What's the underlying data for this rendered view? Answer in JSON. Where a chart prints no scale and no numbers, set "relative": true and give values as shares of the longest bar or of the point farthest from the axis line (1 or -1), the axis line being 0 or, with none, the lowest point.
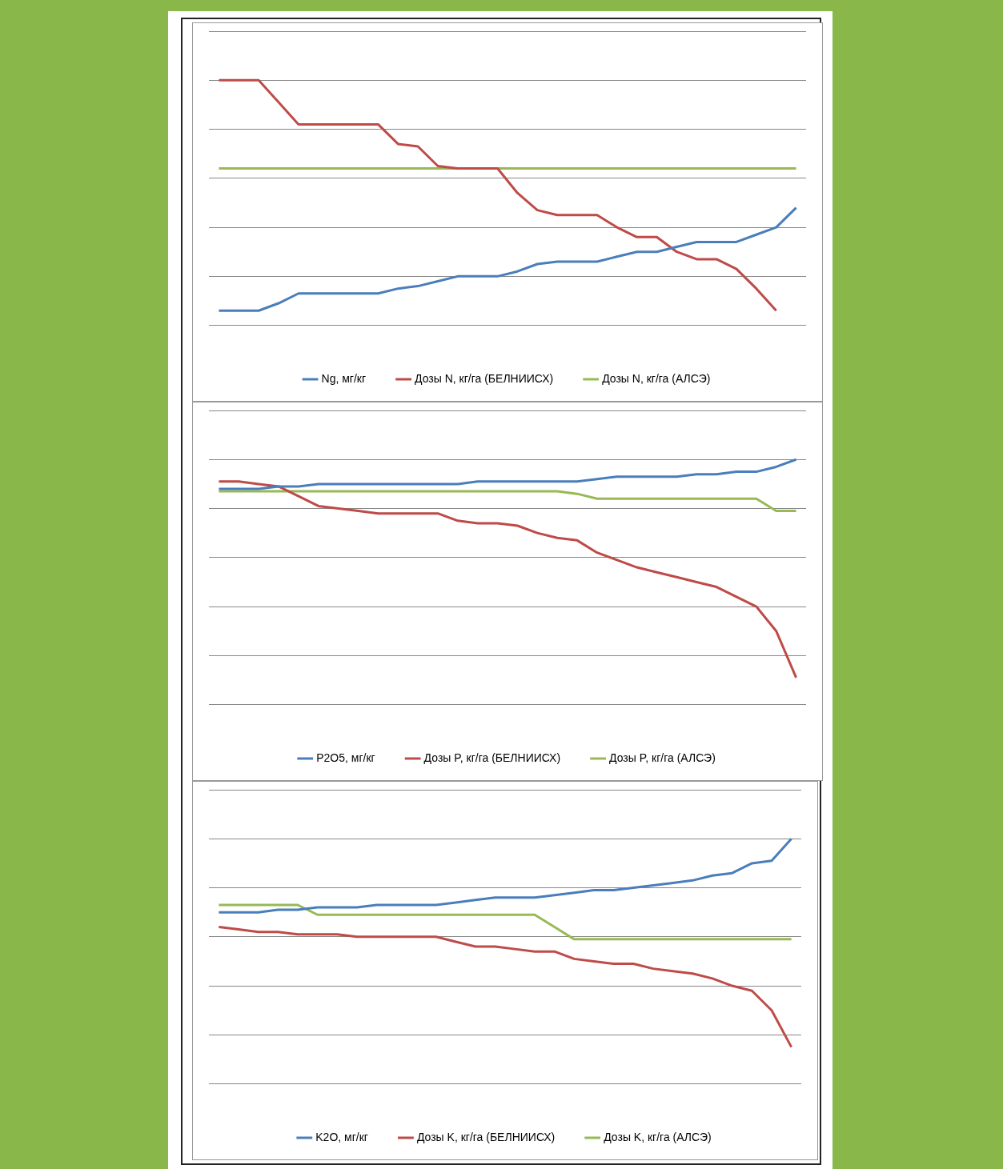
{
  "chart_data": [
    {
      "type": "line",
      "relative": true,
      "categories": [
        null,
        null,
        null,
        null,
        null,
        null,
        null,
        null,
        null,
        null,
        null,
        null,
        null,
        null,
        null,
        null,
        null,
        null,
        null,
        null,
        null,
        null,
        null,
        null,
        null,
        null,
        null,
        null,
        null,
        null
      ],
      "grid": "y",
      "legend": "bottom",
      "marker": "none",
      "series": [
        {
          "name": "Ng, мг/кг",
          "color": "#4a7ebb",
          "values": [
            0.06,
            0.06,
            0.06,
            0.09,
            0.13,
            0.13,
            0.13,
            0.13,
            0.13,
            0.15,
            0.16,
            0.18,
            0.2,
            0.2,
            0.2,
            0.22,
            0.25,
            0.26,
            0.26,
            0.26,
            0.28,
            0.3,
            0.3,
            0.32,
            0.34,
            0.34,
            0.34,
            0.37,
            0.4,
            0.48
          ]
        },
        {
          "name": "Дозы N, кг/га (БЕЛНИИСХ)",
          "color": "#be4b48",
          "values": [
            1,
            1,
            1,
            0.91,
            0.82,
            0.82,
            0.82,
            0.82,
            0.82,
            0.74,
            0.73,
            0.65,
            0.64,
            0.64,
            0.64,
            0.54,
            0.47,
            0.45,
            0.45,
            0.45,
            0.4,
            0.36,
            0.36,
            0.3,
            0.27,
            0.27,
            0.23,
            0.15,
            0.06,
            null
          ]
        },
        {
          "name": "Дозы N, кг/га (АЛСЭ)",
          "color": "#98b954",
          "values": [
            0.64,
            0.64,
            0.64,
            0.64,
            0.64,
            0.64,
            0.64,
            0.64,
            0.64,
            0.64,
            0.64,
            0.64,
            0.64,
            0.64,
            0.64,
            0.64,
            0.64,
            0.64,
            0.64,
            0.64,
            0.64,
            0.64,
            0.64,
            0.64,
            0.64,
            0.64,
            0.64,
            0.64,
            0.64,
            0.64
          ]
        }
      ]
    },
    {
      "type": "line",
      "relative": true,
      "categories": [
        null,
        null,
        null,
        null,
        null,
        null,
        null,
        null,
        null,
        null,
        null,
        null,
        null,
        null,
        null,
        null,
        null,
        null,
        null,
        null,
        null,
        null,
        null,
        null,
        null,
        null,
        null,
        null,
        null,
        null
      ],
      "grid": "y",
      "legend": "bottom",
      "marker": "none",
      "series": [
        {
          "name": "P2O5, мг/кг",
          "color": "#4a7ebb",
          "values": [
            0.88,
            0.88,
            0.88,
            0.89,
            0.89,
            0.9,
            0.9,
            0.9,
            0.9,
            0.9,
            0.9,
            0.9,
            0.9,
            0.91,
            0.91,
            0.91,
            0.91,
            0.91,
            0.91,
            0.92,
            0.93,
            0.93,
            0.93,
            0.93,
            0.94,
            0.94,
            0.95,
            0.95,
            0.97,
            1
          ]
        },
        {
          "name": "Дозы P, кг/га (БЕЛНИИСХ)",
          "color": "#be4b48",
          "values": [
            0.91,
            0.91,
            0.9,
            0.89,
            0.85,
            0.81,
            0.8,
            0.79,
            0.78,
            0.78,
            0.78,
            0.78,
            0.75,
            0.74,
            0.74,
            0.73,
            0.7,
            0.68,
            0.67,
            0.62,
            0.59,
            0.56,
            0.54,
            0.52,
            0.5,
            0.48,
            0.44,
            0.4,
            0.3,
            0.11
          ]
        },
        {
          "name": "Дозы P, кг/га (АЛСЭ)",
          "color": "#98b954",
          "values": [
            0.87,
            0.87,
            0.87,
            0.87,
            0.87,
            0.87,
            0.87,
            0.87,
            0.87,
            0.87,
            0.87,
            0.87,
            0.87,
            0.87,
            0.87,
            0.87,
            0.87,
            0.87,
            0.86,
            0.84,
            0.84,
            0.84,
            0.84,
            0.84,
            0.84,
            0.84,
            0.84,
            0.84,
            0.79,
            0.79
          ]
        }
      ]
    },
    {
      "type": "line",
      "relative": true,
      "categories": [
        null,
        null,
        null,
        null,
        null,
        null,
        null,
        null,
        null,
        null,
        null,
        null,
        null,
        null,
        null,
        null,
        null,
        null,
        null,
        null,
        null,
        null,
        null,
        null,
        null,
        null,
        null,
        null,
        null,
        null
      ],
      "grid": "y",
      "legend": "bottom",
      "marker": "none",
      "series": [
        {
          "name": "K2O, мг/кг",
          "color": "#4a7ebb",
          "values": [
            0.7,
            0.7,
            0.7,
            0.71,
            0.71,
            0.72,
            0.72,
            0.72,
            0.73,
            0.73,
            0.73,
            0.73,
            0.74,
            0.75,
            0.76,
            0.76,
            0.76,
            0.77,
            0.78,
            0.79,
            0.79,
            0.8,
            0.81,
            0.82,
            0.83,
            0.85,
            0.86,
            0.9,
            0.91,
            1
          ]
        },
        {
          "name": "Дозы K, кг/га (БЕЛНИИСХ)",
          "color": "#be4b48",
          "values": [
            0.64,
            0.63,
            0.62,
            0.62,
            0.61,
            0.61,
            0.61,
            0.6,
            0.6,
            0.6,
            0.6,
            0.6,
            0.58,
            0.56,
            0.56,
            0.55,
            0.54,
            0.54,
            0.51,
            0.5,
            0.49,
            0.49,
            0.47,
            0.46,
            0.45,
            0.43,
            0.4,
            0.38,
            0.3,
            0.15
          ]
        },
        {
          "name": "Дозы K, кг/га (АЛСЭ)",
          "color": "#98b954",
          "values": [
            0.73,
            0.73,
            0.73,
            0.73,
            0.73,
            0.69,
            0.69,
            0.69,
            0.69,
            0.69,
            0.69,
            0.69,
            0.69,
            0.69,
            0.69,
            0.69,
            0.69,
            0.64,
            0.59,
            0.59,
            0.59,
            0.59,
            0.59,
            0.59,
            0.59,
            0.59,
            0.59,
            0.59,
            0.59,
            0.59
          ]
        }
      ]
    }
  ]
}
